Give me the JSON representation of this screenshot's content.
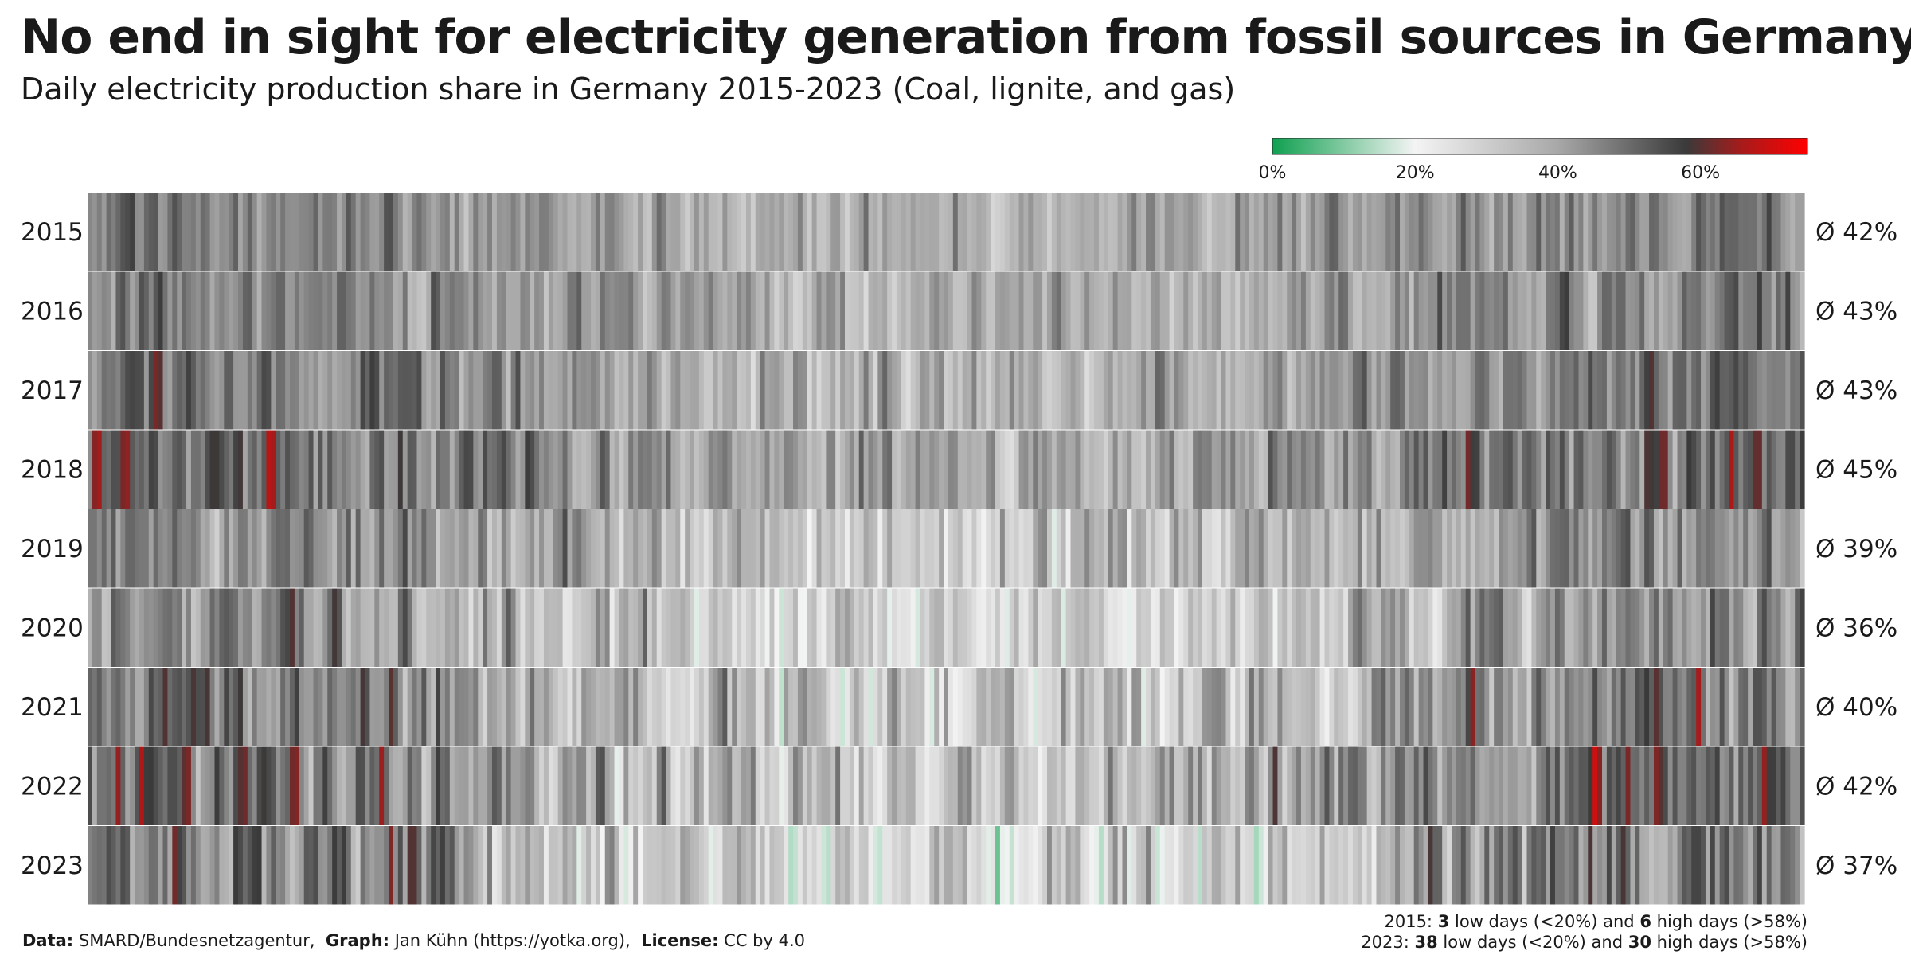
{
  "header": {
    "title": "No end in sight for electricity generation from fossil sources in Germany",
    "subtitle": "Daily electricity production share in Germany 2015-2023 (Coal, lignite, and gas)"
  },
  "footer": {
    "data_label": "Data:",
    "data_value": "SMARD/Bundesnetzagentur,",
    "graph_label": "Graph:",
    "graph_value": "Jan Kühn (https://yotka.org),",
    "license_label": "License:",
    "license_value": "CC by 4.0",
    "summary": [
      {
        "year": "2015:",
        "low_count": "3",
        "low_text": "low days (<20%) and",
        "high_count": "6",
        "high_text": "high days (>58%)"
      },
      {
        "year": "2023:",
        "low_count": "38",
        "low_text": "low days (<20%) and",
        "high_count": "30",
        "high_text": "high days (>58%)"
      }
    ]
  },
  "chart_data": {
    "type": "heatmap",
    "x_unit": "day of year",
    "value_unit": "% of daily electricity production",
    "legend": {
      "placement": "top-right",
      "ticks": [
        "0%",
        "20%",
        "40%",
        "60%"
      ],
      "tick_values": [
        0,
        20,
        40,
        60
      ],
      "range": [
        0,
        75
      ],
      "colors": [
        {
          "value": 0,
          "color": "#10a050"
        },
        {
          "value": 20,
          "color": "#f4f4f4"
        },
        {
          "value": 40,
          "color": "#a8a8a8"
        },
        {
          "value": 58,
          "color": "#3a3a3a"
        },
        {
          "value": 66,
          "color": "#aa1a1a"
        },
        {
          "value": 75,
          "color": "#ff0000"
        }
      ]
    },
    "rows": [
      {
        "year": "2015",
        "average": 42,
        "avg_label": "Ø 42%",
        "low_days": 3,
        "high_days": 6
      },
      {
        "year": "2016",
        "average": 43,
        "avg_label": "Ø 43%"
      },
      {
        "year": "2017",
        "average": 43,
        "avg_label": "Ø 43%"
      },
      {
        "year": "2018",
        "average": 45,
        "avg_label": "Ø 45%"
      },
      {
        "year": "2019",
        "average": 39,
        "avg_label": "Ø 39%"
      },
      {
        "year": "2020",
        "average": 36,
        "avg_label": "Ø 36%"
      },
      {
        "year": "2021",
        "average": 40,
        "avg_label": "Ø 40%"
      },
      {
        "year": "2022",
        "average": 42,
        "avg_label": "Ø 42%"
      },
      {
        "year": "2023",
        "average": 37,
        "avg_label": "Ø 37%",
        "low_days": 38,
        "high_days": 30
      }
    ]
  }
}
